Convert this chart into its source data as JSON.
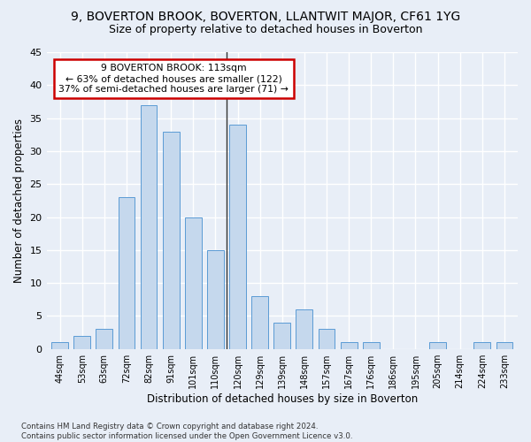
{
  "title": "9, BOVERTON BROOK, BOVERTON, LLANTWIT MAJOR, CF61 1YG",
  "subtitle": "Size of property relative to detached houses in Boverton",
  "xlabel": "Distribution of detached houses by size in Boverton",
  "ylabel": "Number of detached properties",
  "categories": [
    "44sqm",
    "53sqm",
    "63sqm",
    "72sqm",
    "82sqm",
    "91sqm",
    "101sqm",
    "110sqm",
    "120sqm",
    "129sqm",
    "139sqm",
    "148sqm",
    "157sqm",
    "167sqm",
    "176sqm",
    "186sqm",
    "195sqm",
    "205sqm",
    "214sqm",
    "224sqm",
    "233sqm"
  ],
  "values": [
    1,
    2,
    3,
    23,
    37,
    33,
    20,
    15,
    34,
    8,
    4,
    6,
    3,
    1,
    1,
    0,
    0,
    1,
    0,
    1,
    1
  ],
  "bar_color": "#c5d8ed",
  "bar_edge_color": "#5b9bd5",
  "vline_index": 7.5,
  "vline_color": "#333333",
  "annotation_text": "9 BOVERTON BROOK: 113sqm\n← 63% of detached houses are smaller (122)\n37% of semi-detached houses are larger (71) →",
  "annotation_box_color": "#ffffff",
  "annotation_box_edge_color": "#cc0000",
  "ylim": [
    0,
    45
  ],
  "yticks": [
    0,
    5,
    10,
    15,
    20,
    25,
    30,
    35,
    40,
    45
  ],
  "bg_color": "#e8eef7",
  "plot_bg_color": "#e8eef7",
  "grid_color": "#ffffff",
  "title_fontsize": 10,
  "subtitle_fontsize": 9,
  "footer_text": "Contains HM Land Registry data © Crown copyright and database right 2024.\nContains public sector information licensed under the Open Government Licence v3.0."
}
